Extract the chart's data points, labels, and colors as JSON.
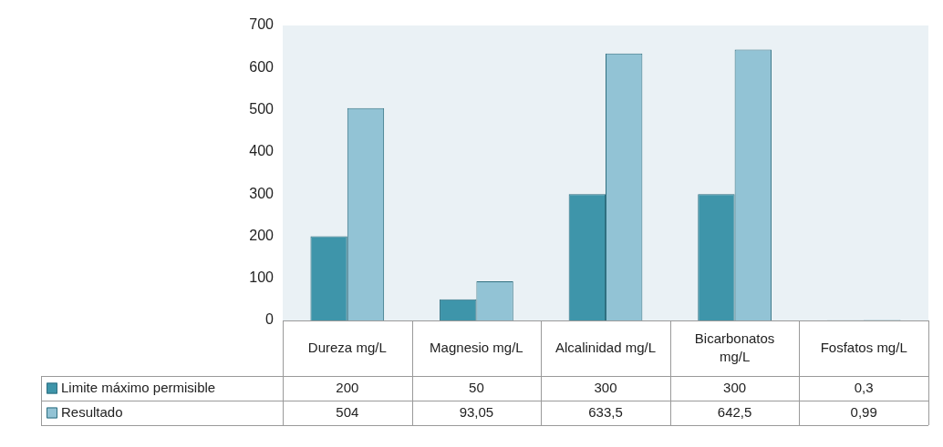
{
  "chart_data": {
    "type": "bar",
    "categories": [
      "Dureza mg/L",
      "Magnesio mg/L",
      "Alcalinidad mg/L",
      "Bicarbonatos mg/L",
      "Fosfatos mg/L"
    ],
    "series": [
      {
        "name": "Limite máximo permisible",
        "color": "#3e95aa",
        "values": [
          200,
          50,
          300,
          300,
          0.3
        ],
        "value_labels": [
          "200",
          "50",
          "300",
          "300",
          "0,3"
        ]
      },
      {
        "name": "Resultado",
        "color": "#92c3d5",
        "values": [
          504,
          93.05,
          633.5,
          642.5,
          0.99
        ],
        "value_labels": [
          "504",
          "93,05",
          "633,5",
          "642,5",
          "0,99"
        ]
      }
    ],
    "ylim": [
      0,
      700
    ],
    "yticks": [
      0,
      100,
      200,
      300,
      400,
      500,
      600,
      700
    ],
    "grid": false,
    "legend": "bottom"
  }
}
